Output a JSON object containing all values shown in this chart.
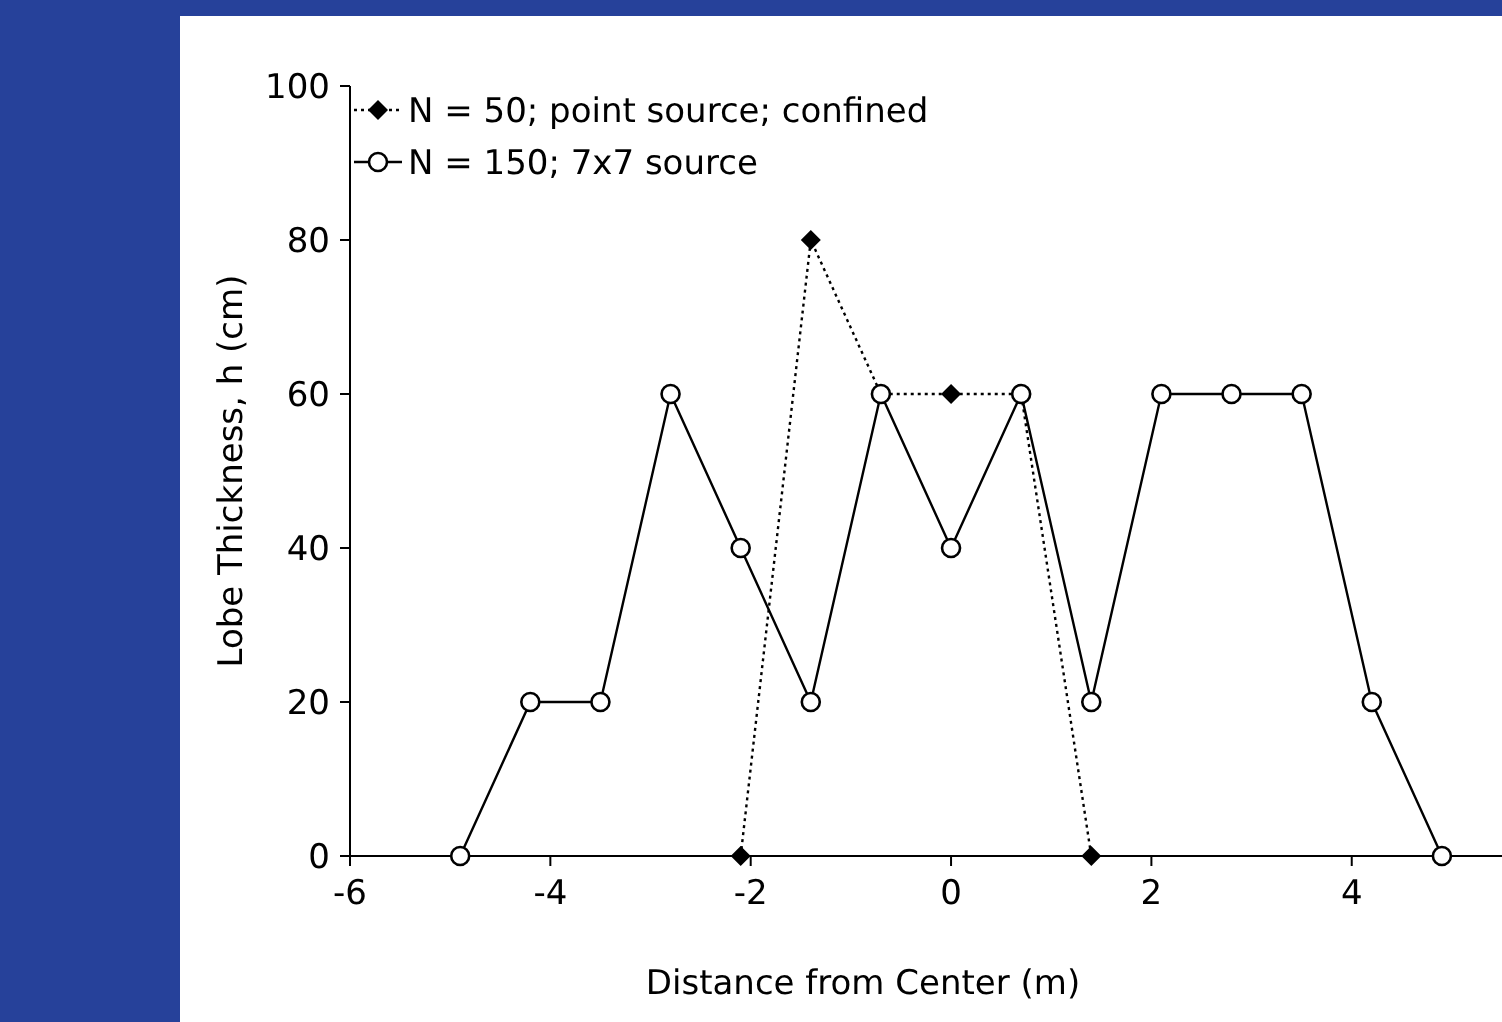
{
  "chart_data": {
    "type": "line",
    "xlabel": "Distance from Center (m)",
    "ylabel": "Lobe Thickness, h (cm)",
    "xlim": [
      -6,
      5.5
    ],
    "xticks": [
      -6,
      -4,
      -2,
      0,
      2,
      4
    ],
    "ylim": [
      0,
      100
    ],
    "yticks": [
      0,
      20,
      40,
      60,
      80,
      100
    ],
    "grid": false,
    "legend": "top left",
    "series": [
      {
        "name": "N = 50; point source; confined",
        "color": "#000000",
        "marker": "diamond",
        "line_style": "dotted",
        "x": [
          -2.1,
          -1.4,
          -0.7,
          0,
          0.7,
          1.4
        ],
        "values": [
          0,
          80,
          60,
          60,
          60,
          0
        ]
      },
      {
        "name": "N = 150; 7x7 source",
        "color": "#000000",
        "marker": "circle",
        "line_style": "solid",
        "x": [
          -4.9,
          -4.2,
          -3.5,
          -2.8,
          -2.1,
          -1.4,
          -0.7,
          0,
          0.7,
          1.4,
          2.1,
          2.8,
          3.5,
          4.2,
          4.9
        ],
        "values": [
          0,
          20,
          20,
          60,
          40,
          20,
          60,
          40,
          60,
          20,
          60,
          60,
          60,
          20,
          0
        ]
      }
    ]
  }
}
